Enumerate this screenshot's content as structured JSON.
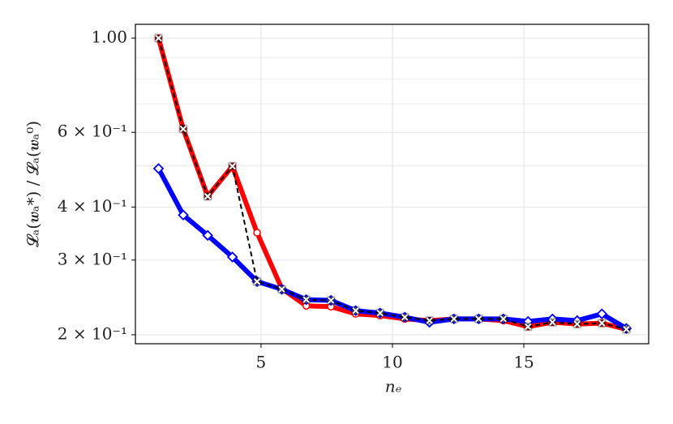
{
  "chart_data": {
    "type": "line",
    "xlabel": "nₑ",
    "ylabel": "𝓛ₐ(𝒘ₐ*) / 𝓛ₐ(𝒘ₐ⁰)",
    "x": [
      1.1,
      2.04,
      2.97,
      3.91,
      4.85,
      5.79,
      6.72,
      7.66,
      8.6,
      9.53,
      10.47,
      11.41,
      12.34,
      13.28,
      14.22,
      15.16,
      16.09,
      17.03,
      17.97,
      18.9
    ],
    "series": [
      {
        "color": "#ff0000",
        "marker": "circle",
        "values": [
          1.0,
          0.611,
          0.424,
          0.499,
          0.348,
          0.257,
          0.234,
          0.233,
          0.224,
          0.222,
          0.218,
          0.216,
          0.218,
          0.218,
          0.216,
          0.209,
          0.214,
          0.212,
          0.213,
          0.206
        ]
      },
      {
        "color": "#0000ff",
        "marker": "diamond",
        "values": [
          0.493,
          0.383,
          0.343,
          0.305,
          0.267,
          0.256,
          0.242,
          0.241,
          0.228,
          0.225,
          0.22,
          0.214,
          0.218,
          0.218,
          0.218,
          0.215,
          0.218,
          0.216,
          0.224,
          0.207
        ]
      },
      {
        "color": "#000000",
        "marker": "x",
        "dashed": true,
        "values": [
          1.0,
          0.611,
          0.424,
          0.499,
          0.267,
          0.256,
          0.242,
          0.241,
          0.228,
          0.225,
          0.22,
          0.216,
          0.218,
          0.218,
          0.218,
          0.209,
          0.214,
          0.212,
          0.213,
          0.206
        ]
      }
    ],
    "xlim": [
      0.22,
      19.75
    ],
    "ylim": [
      0.1905,
      1.078
    ],
    "log_y": true,
    "xticks": [
      5,
      10,
      15
    ],
    "yticks": [
      {
        "value": 1.0,
        "label": "1.00"
      },
      {
        "value": 0.6,
        "label": "6 × 10⁻¹"
      },
      {
        "value": 0.4,
        "label": "4 × 10⁻¹"
      },
      {
        "value": 0.3,
        "label": "3 × 10⁻¹"
      },
      {
        "value": 0.2,
        "label": "2 × 10⁻¹"
      }
    ],
    "yminorticks": [
      0.5,
      0.7,
      0.8,
      0.9
    ],
    "grid": true
  }
}
